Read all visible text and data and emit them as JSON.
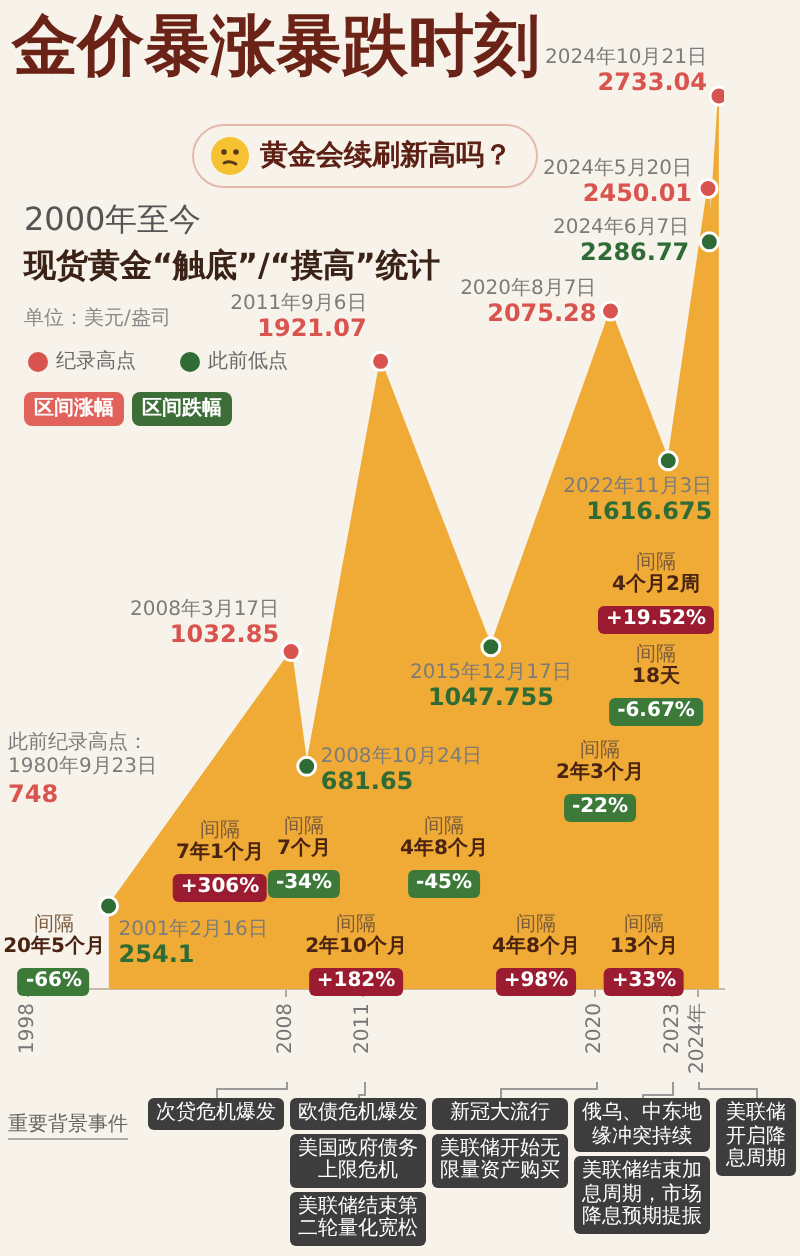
{
  "chart_data": {
    "type": "area",
    "title": "金价暴涨暴跌时刻",
    "subtitle": "现货黄金“触底”/“摸高”统计",
    "ylabel": "单位：美元/盎司",
    "xlim": [
      "1998",
      "2025"
    ],
    "xticks": [
      "1998",
      "2008",
      "2011",
      "2020",
      "2023",
      {
        "value": "2024",
        "label": "2024年"
      }
    ],
    "tick_labels": "x",
    "legend": "top left",
    "series": [
      {
        "color": "#efab36",
        "x": [
          "2001-02-16",
          "2008-03-17",
          "2008-10-24",
          "2011-09-06",
          "2015-12-17",
          "2020-08-07",
          "2022-11-03",
          "2024-05-20",
          "2024-06-07",
          "2024-10-21"
        ],
        "values": [
          254.1,
          1032.85,
          681.65,
          1921.07,
          1047.755,
          2075.28,
          1616.675,
          2450.01,
          2286.77,
          2733.04
        ]
      },
      {
        "type": "scatter",
        "name": "纪录高点",
        "color": "#d9534f",
        "x": [
          "2008-03-17",
          "2011-09-06",
          "2020-08-07",
          "2024-05-20",
          "2024-10-21"
        ],
        "values": [
          1032.85,
          1921.07,
          2075.28,
          2450.01,
          2733.04
        ],
        "value_labels": [
          "1032.85",
          "1921.07",
          "2075.28",
          "2450.01",
          "2733.04"
        ]
      },
      {
        "type": "scatter",
        "name": "此前低点",
        "color": "#2f6b34",
        "x": [
          "2001-02-16",
          "2008-10-24",
          "2015-12-17",
          "2022-11-03",
          "2024-06-07"
        ],
        "values": [
          254.1,
          681.65,
          1047.755,
          1616.675,
          2286.77
        ],
        "value_labels": [
          "254.1",
          "681.65",
          "1047.755",
          "1616.675",
          "2286.77"
        ]
      }
    ],
    "annotations": [
      "黄金会续刷新高吗？",
      "2000年至今",
      "区间涨幅",
      "区间跌幅",
      "此前纪录高点：\n1980年9月23日\n748",
      "间隔\n20年5个月\n-66%",
      "间隔\n7年1个月\n+306%",
      "间隔\n7个月\n-34%",
      "间隔\n2年10个月\n+182%",
      "间隔\n4年8个月\n-45%",
      "间隔\n4年8个月\n+98%",
      "间隔\n2年3个月\n-22%",
      "间隔\n13个月\n+33%",
      "间隔\n18天\n-6.67%",
      "间隔\n4个月2周\n+19.52%",
      "重要背景事件",
      "次贷危机爆发",
      "欧债危机爆发",
      "美国政府债务上限危机",
      "美联储结束第二轮量化宽松",
      "新冠大流行",
      "美联储开始无限量资产购买",
      "俄乌、中东地缘冲突持续",
      "美联储结束加息周期，市场降息预期提振",
      "美联储开启降息周期",
      {
        "text": "2001年2月16日",
        "x": "2001-02-16",
        "y": 254.1
      },
      {
        "text": "2008年3月17日",
        "x": "2008-03-17",
        "y": 1032.85
      },
      {
        "text": "2008年10月24日",
        "x": "2008-10-24",
        "y": 681.65
      },
      {
        "text": "2011年9月6日",
        "x": "2011-09-06",
        "y": 1921.07
      },
      {
        "text": "2015年12月17日",
        "x": "2015-12-17",
        "y": 1047.755
      },
      {
        "text": "2020年8月7日",
        "x": "2020-08-07",
        "y": 2075.28
      },
      {
        "text": "2022年11月3日",
        "x": "2022-11-03",
        "y": 1616.675
      },
      {
        "text": "2024年5月20日",
        "x": "2024-05-20",
        "y": 2450.01
      },
      {
        "text": "2024年6月7日",
        "x": "2024-06-07",
        "y": 2286.77
      },
      {
        "text": "2024年10月21日",
        "x": "2024-10-21",
        "y": 2733.04
      }
    ]
  }
}
